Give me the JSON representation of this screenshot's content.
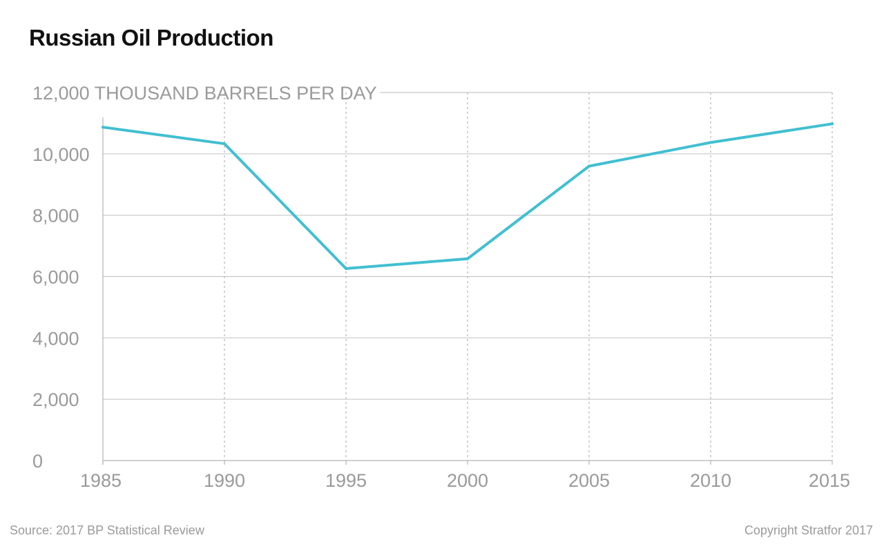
{
  "chart_data": {
    "type": "line",
    "title": "Russian Oil Production",
    "ylabel": "THOUSAND BARRELS PER DAY",
    "x": [
      1985,
      1990,
      1995,
      2000,
      2005,
      2010,
      2015
    ],
    "series": [
      {
        "values": [
          10870,
          10330,
          6260,
          6580,
          9600,
          10370,
          10980
        ]
      }
    ],
    "xlim": [
      1985,
      2015
    ],
    "ylim": [
      0,
      12000
    ],
    "y_ticks": [
      0,
      2000,
      4000,
      6000,
      8000,
      10000,
      12000
    ],
    "y_tick_labels": [
      "0",
      "2,000",
      "4,000",
      "6,000",
      "8,000",
      "10,000",
      "12,000"
    ],
    "x_tick_labels": [
      "1985",
      "1990",
      "1995",
      "2000",
      "2005",
      "2010",
      "2015"
    ],
    "grid": true,
    "legend": "none"
  },
  "footer": {
    "source": "Source: 2017 BP Statistical Review",
    "copyright": "Copyright Stratfor 2017"
  },
  "colors": {
    "line": "#41bfd1",
    "grid": "#c8c8c8",
    "axis": "#b5b5b5",
    "text": "#9a9a9a",
    "title": "#111111"
  }
}
